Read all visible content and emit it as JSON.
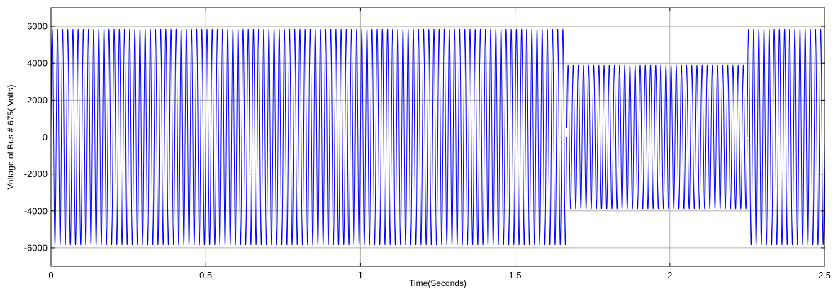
{
  "chart_data": {
    "type": "line",
    "title": "",
    "xlabel": "Time(Seconds)",
    "ylabel": "Voltage of Bus # 675( Volts)",
    "xlim": [
      0,
      2.5
    ],
    "ylim": [
      -7000,
      7000
    ],
    "xticks": [
      0,
      0.5,
      1,
      1.5,
      2,
      2.5
    ],
    "xtick_labels": [
      "0",
      "0.5",
      "1",
      "1.5",
      "2",
      "2.5"
    ],
    "yticks": [
      -6000,
      -4000,
      -2000,
      0,
      2000,
      4000,
      6000
    ],
    "ytick_labels": [
      "-6000",
      "-4000",
      "-2000",
      "0",
      "2000",
      "4000",
      "6000"
    ],
    "grid": true,
    "series": [
      {
        "color": "#0000ff",
        "waveform": "sine",
        "frequency_hz": 60,
        "segments": [
          {
            "t_start": 0,
            "t_end": 1.667,
            "amplitude": 5850
          },
          {
            "t_start": 1.667,
            "t_end": 2.25,
            "amplitude": 3900
          },
          {
            "t_start": 2.25,
            "t_end": 2.5,
            "amplitude": 5850
          }
        ]
      }
    ]
  }
}
